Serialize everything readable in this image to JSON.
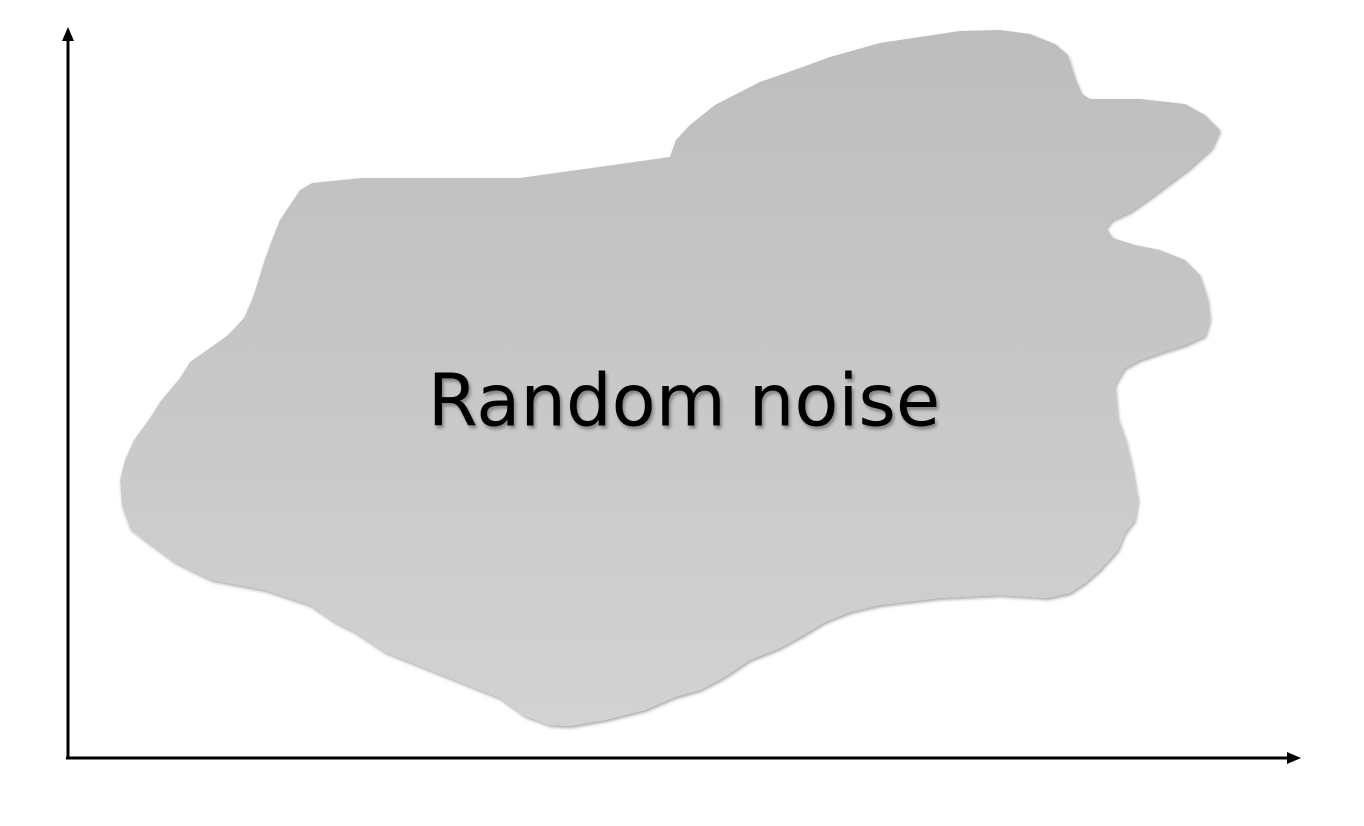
{
  "diagram": {
    "blob_label": "Random noise",
    "blob_fill_top": "#bdbdbd",
    "blob_fill_bottom": "#d2d2d2",
    "axis_color": "#000000"
  }
}
